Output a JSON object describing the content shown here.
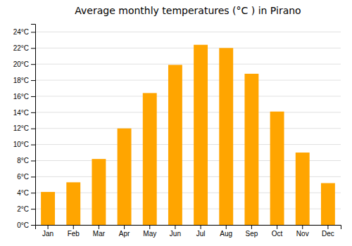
{
  "chart_data": {
    "type": "bar",
    "title": "Average monthly temperatures (°C ) in Pirano",
    "categories": [
      "Jan",
      "Feb",
      "Mar",
      "Apr",
      "May",
      "Jun",
      "Jul",
      "Aug",
      "Sep",
      "Oct",
      "Nov",
      "Dec"
    ],
    "values": [
      4.1,
      5.3,
      8.2,
      12.0,
      16.4,
      19.9,
      22.4,
      22.0,
      18.8,
      14.1,
      9.0,
      5.2
    ],
    "color": "#FFA500",
    "ylim": [
      0,
      25
    ],
    "yticks": [
      {
        "value": 0,
        "label": "0°C"
      },
      {
        "value": 2,
        "label": "2°C"
      },
      {
        "value": 4,
        "label": "4°C"
      },
      {
        "value": 6,
        "label": "6°C"
      },
      {
        "value": 8,
        "label": "8°C"
      },
      {
        "value": 10,
        "label": "10°C"
      },
      {
        "value": 12,
        "label": "12°C"
      },
      {
        "value": 14,
        "label": "14°C"
      },
      {
        "value": 16,
        "label": "16°C"
      },
      {
        "value": 18,
        "label": "18°C"
      },
      {
        "value": 20,
        "label": "20°C"
      },
      {
        "value": 22,
        "label": "22°C"
      },
      {
        "value": 24,
        "label": "24°C"
      }
    ],
    "grid": true
  }
}
